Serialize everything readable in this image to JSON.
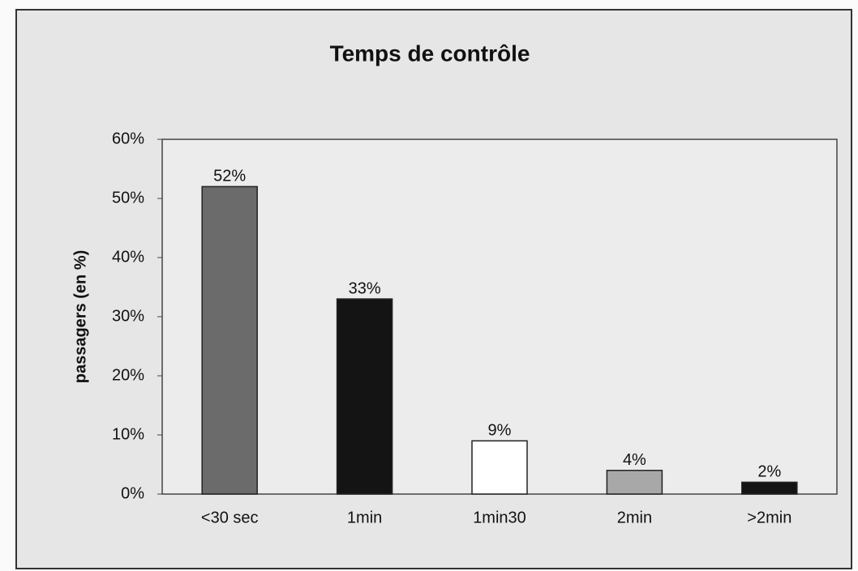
{
  "chart_data": {
    "type": "bar",
    "title": "Temps de contrôle",
    "ylabel": "passagers (en %)",
    "categories": [
      "<30 sec",
      "1min",
      "1min30",
      "2min",
      ">2min"
    ],
    "values": [
      52,
      33,
      9,
      4,
      2
    ],
    "value_labels": [
      "52%",
      "33%",
      "9%",
      "4%",
      "2%"
    ],
    "colors": [
      "#6b6b6b",
      "#141414",
      "#ffffff",
      "#a8a8a8",
      "#141414"
    ],
    "ylim": [
      0,
      60
    ],
    "yticks": [
      {
        "value": 0,
        "label": "0%"
      },
      {
        "value": 10,
        "label": "10%"
      },
      {
        "value": 20,
        "label": "20%"
      },
      {
        "value": 30,
        "label": "30%"
      },
      {
        "value": 40,
        "label": "40%"
      },
      {
        "value": 50,
        "label": "50%"
      },
      {
        "value": 60,
        "label": "60%"
      }
    ],
    "grid": false
  }
}
